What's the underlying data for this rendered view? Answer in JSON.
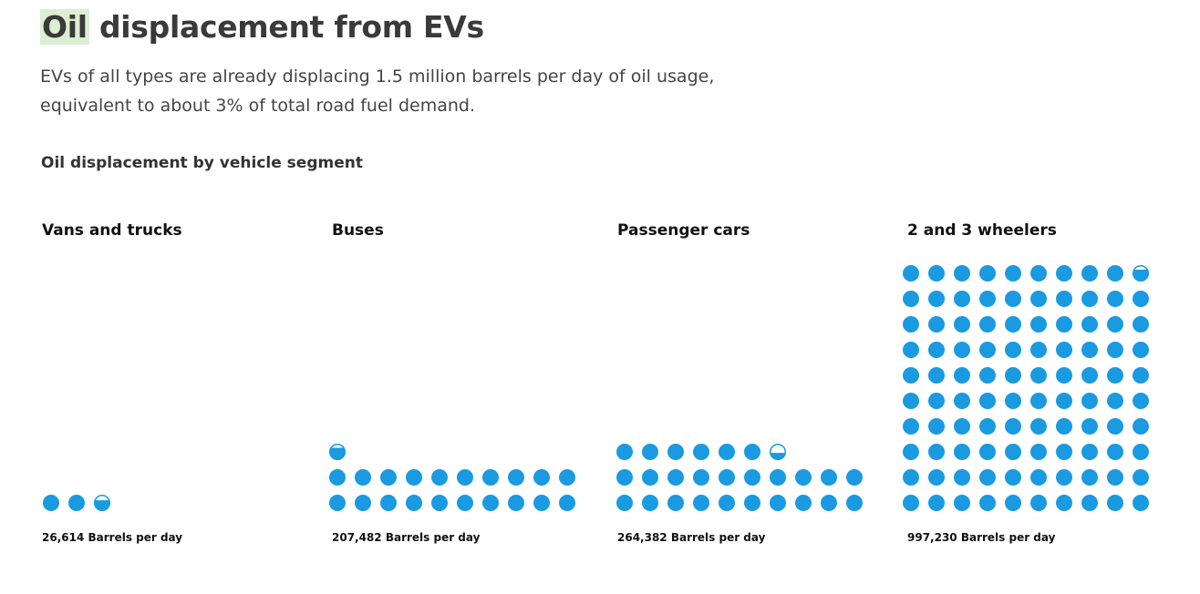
{
  "title": {
    "highlight": "Oil",
    "rest": " displacement from EVs"
  },
  "subtitle": "EVs of all types are already displacing 1.5 million barrels per day of oil usage, equivalent to about 3% of total road fuel demand.",
  "section_title": "Oil displacement by vehicle segment",
  "colors": {
    "dot": "#1a9ae0",
    "highlight": "#dcefd2",
    "text": "#333333"
  },
  "chart_data": {
    "type": "pictogram",
    "unit_per_dot": 10000,
    "segments": [
      {
        "name": "Vans and trucks",
        "value": 26614,
        "label": "26,614 Barrels per day"
      },
      {
        "name": "Buses",
        "value": 207482,
        "label": "207,482 Barrels per day"
      },
      {
        "name": "Passenger cars",
        "value": 264382,
        "label": "264,382 Barrels per day"
      },
      {
        "name": "2 and 3 wheelers",
        "value": 997230,
        "label": "997,230 Barrels per day"
      }
    ]
  }
}
